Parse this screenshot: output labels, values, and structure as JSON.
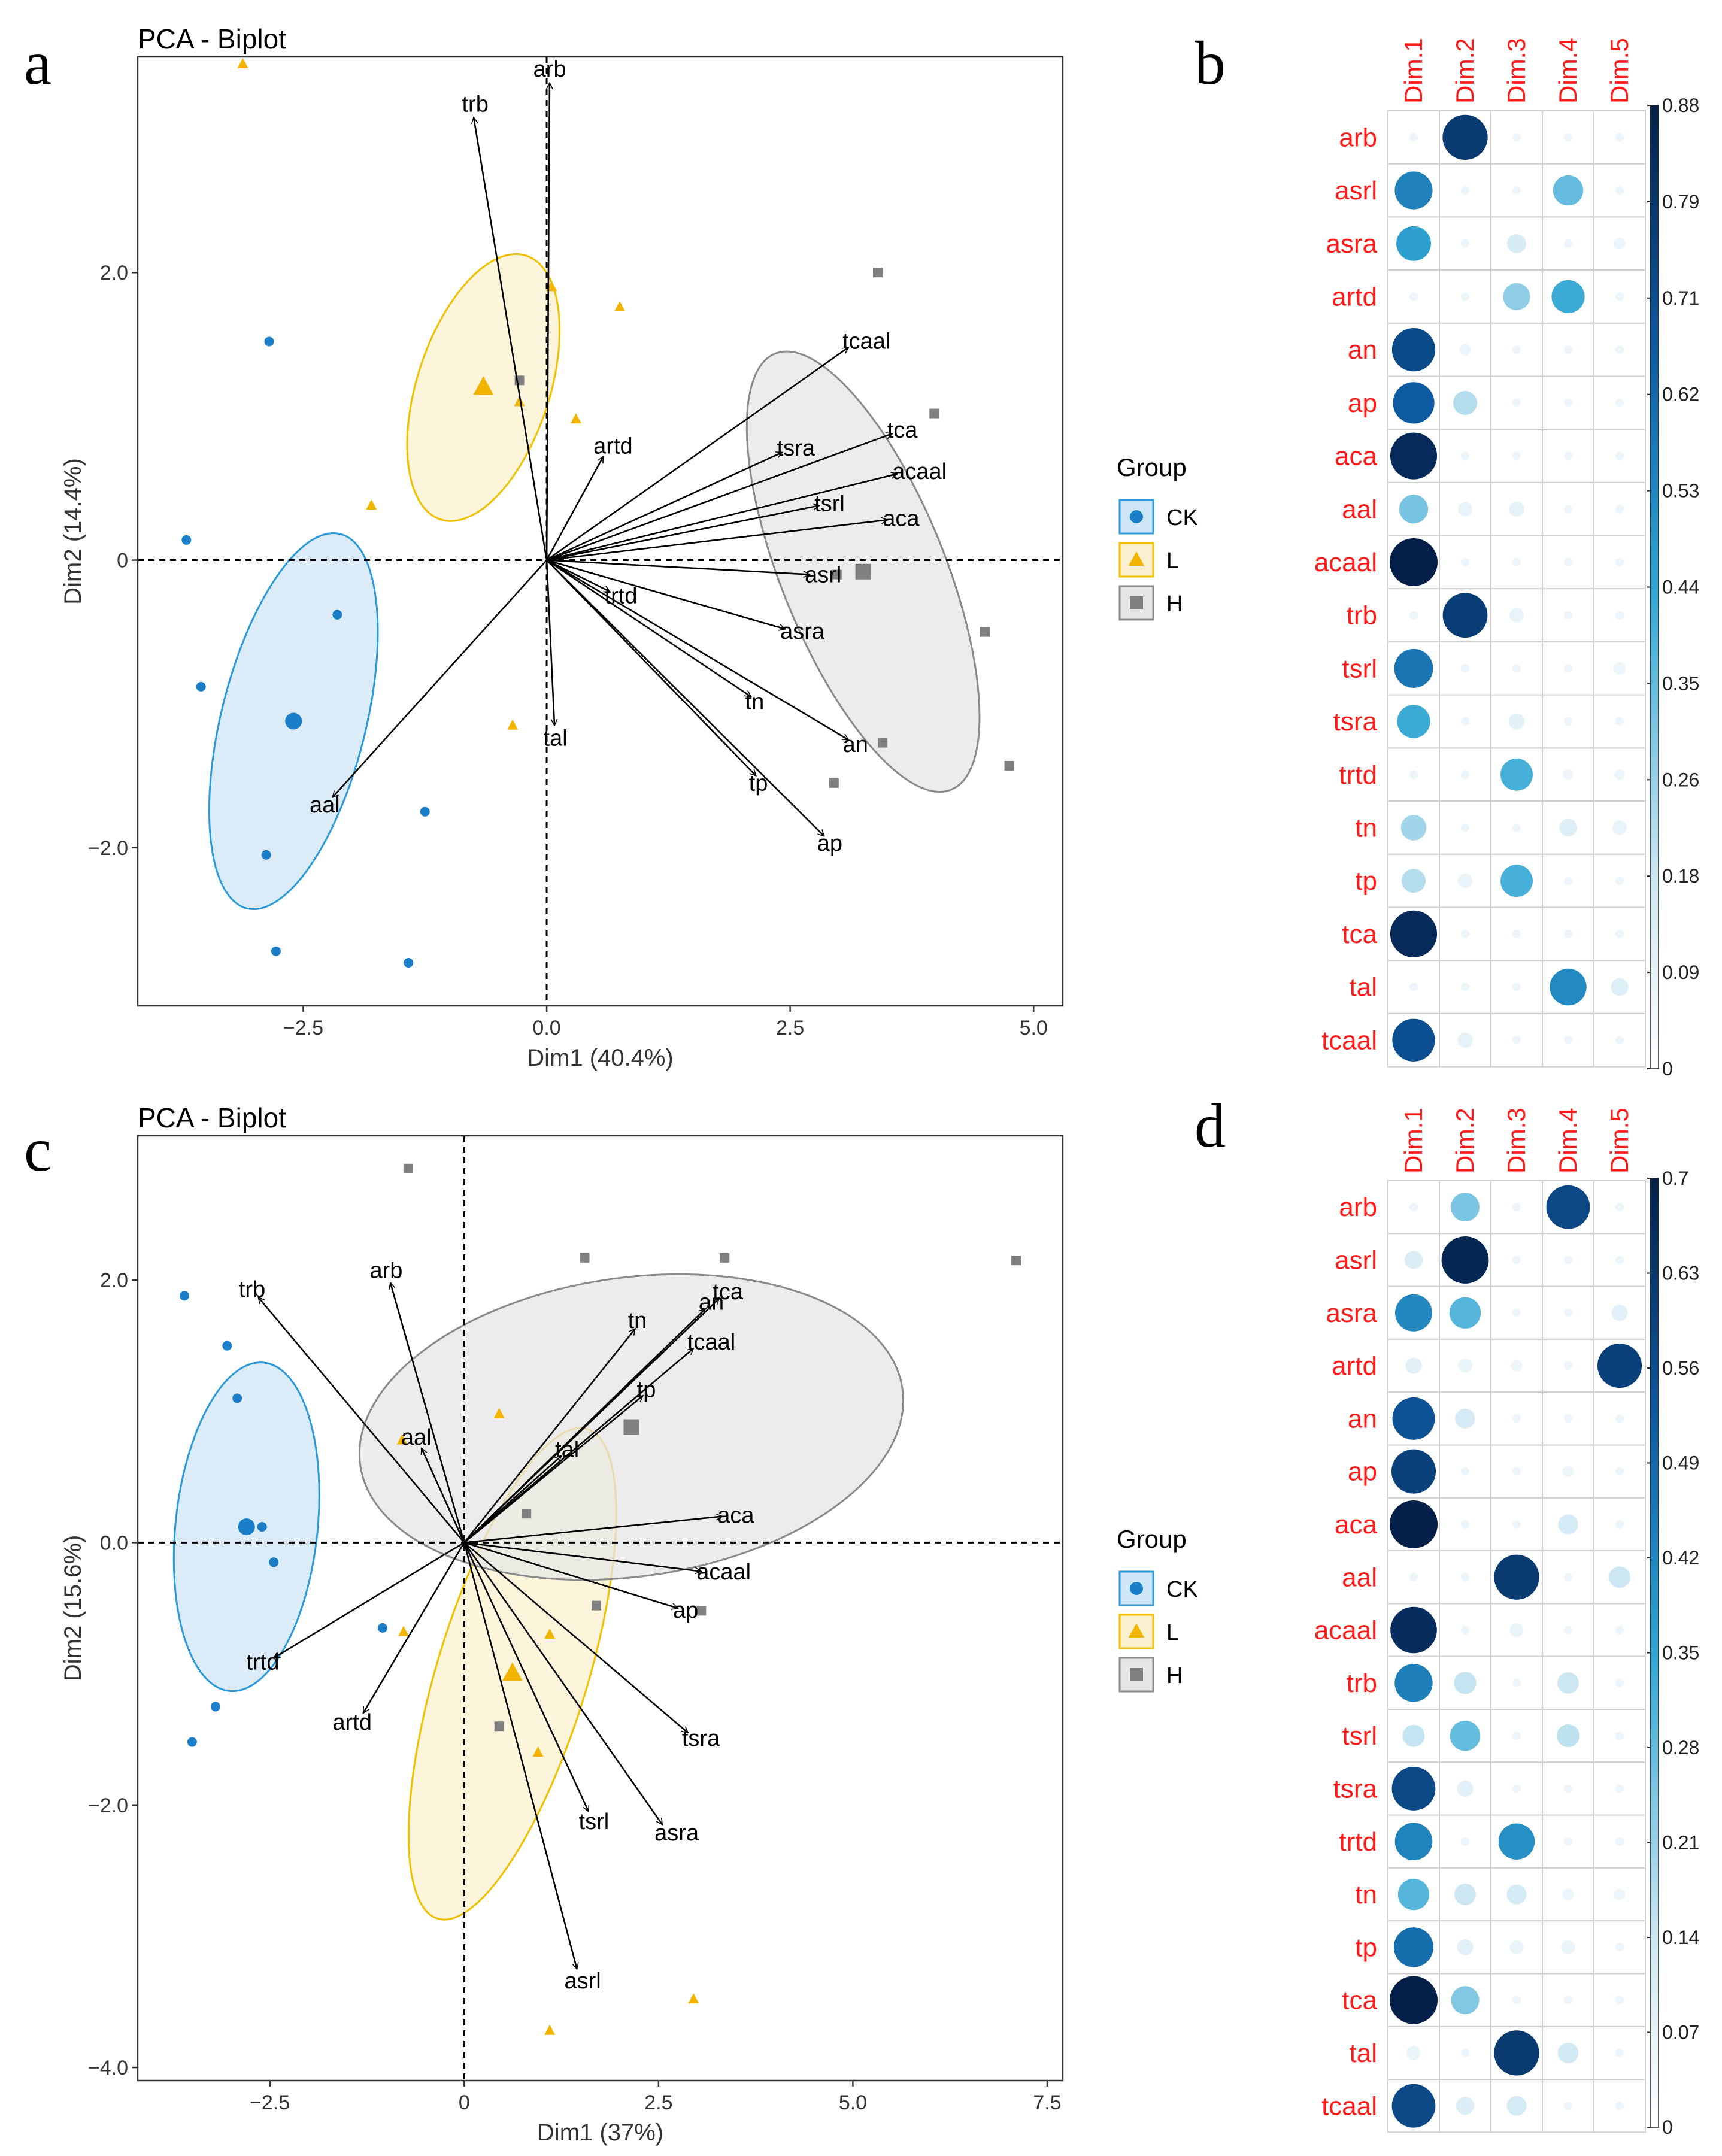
{
  "colors": {
    "CK": "#1a7fc8",
    "L": "#f3b400",
    "H": "#808080",
    "CK_fill": "#cfe6f6",
    "L_fill": "#fbf1d0",
    "H_fill": "#e6e6e6",
    "CK_line": "#2c9ad8",
    "L_line": "#f0c000",
    "H_line": "#8a8a8a"
  },
  "legend": {
    "title": "Group",
    "groups": [
      "CK",
      "L",
      "H"
    ]
  },
  "chart_data": [
    {
      "panel": "a",
      "type": "scatter",
      "title": "PCA - Biplot",
      "xlabel": "Dim1 (40.4%)",
      "ylabel": "Dim2 (14.4%)",
      "xlim": [
        -4.2,
        5.3
      ],
      "ylim": [
        -3.1,
        3.5
      ],
      "xticks": [
        -2.5,
        0.0,
        2.5,
        5.0
      ],
      "xtick_labels": [
        "−2.5",
        "0.0",
        "2.5",
        "5.0"
      ],
      "yticks": [
        -2.0,
        0,
        2.0
      ],
      "ytick_labels": [
        "−2.0",
        "0",
        "2.0"
      ],
      "points": {
        "CK": [
          [
            -3.7,
            0.14
          ],
          [
            -2.85,
            1.52
          ],
          [
            -3.55,
            -0.88
          ],
          [
            -2.15,
            -0.38
          ],
          [
            -2.88,
            -2.05
          ],
          [
            -1.25,
            -1.75
          ],
          [
            -2.78,
            -2.72
          ],
          [
            -1.42,
            -2.8
          ]
        ],
        "L": [
          [
            -3.12,
            3.45
          ],
          [
            0.05,
            1.9
          ],
          [
            0.75,
            1.76
          ],
          [
            -0.28,
            1.1
          ],
          [
            0.3,
            0.98
          ],
          [
            -1.8,
            0.38
          ],
          [
            -0.35,
            -1.15
          ]
        ],
        "H": [
          [
            3.4,
            2.0
          ],
          [
            3.98,
            1.02
          ],
          [
            2.98,
            -0.1
          ],
          [
            4.5,
            -0.5
          ],
          [
            3.45,
            -1.27
          ],
          [
            2.95,
            -1.55
          ],
          [
            4.75,
            -1.43
          ],
          [
            -0.28,
            1.25
          ]
        ]
      },
      "centroids": {
        "CK": [
          -2.6,
          -1.12
        ],
        "L": [
          -0.65,
          1.2
        ],
        "H": [
          3.25,
          -0.08
        ]
      },
      "ellipses": {
        "CK": {
          "cx": -2.6,
          "cy": -1.12,
          "rx": 1.6,
          "ry": 0.6,
          "angle": 76
        },
        "L": {
          "cx": -0.65,
          "cy": 1.2,
          "rx": 1.15,
          "ry": 0.55,
          "angle": 72
        },
        "H": {
          "cx": 3.25,
          "cy": -0.08,
          "rx": 1.95,
          "ry": 0.68,
          "angle": 112
        }
      },
      "arrows": [
        {
          "label": "arb",
          "x": 0.03,
          "y": 3.32
        },
        {
          "label": "trb",
          "x": -0.75,
          "y": 3.08
        },
        {
          "label": "artd",
          "x": 0.58,
          "y": 0.72
        },
        {
          "label": "tcaal",
          "x": 3.1,
          "y": 1.48
        },
        {
          "label": "tca",
          "x": 3.55,
          "y": 0.88
        },
        {
          "label": "tsra",
          "x": 2.42,
          "y": 0.75
        },
        {
          "label": "acaal",
          "x": 3.6,
          "y": 0.6
        },
        {
          "label": "tsrl",
          "x": 2.8,
          "y": 0.38
        },
        {
          "label": "aca",
          "x": 3.5,
          "y": 0.28
        },
        {
          "label": "asrl",
          "x": 2.7,
          "y": -0.1
        },
        {
          "label": "asra",
          "x": 2.45,
          "y": -0.48
        },
        {
          "label": "trtd",
          "x": 0.65,
          "y": -0.22
        },
        {
          "label": "tn",
          "x": 2.1,
          "y": -0.95
        },
        {
          "label": "tal",
          "x": 0.08,
          "y": -1.15
        },
        {
          "label": "aal",
          "x": -2.2,
          "y": -1.65
        },
        {
          "label": "tp",
          "x": 2.15,
          "y": -1.5
        },
        {
          "label": "an",
          "x": 3.1,
          "y": -1.25
        },
        {
          "label": "ap",
          "x": 2.85,
          "y": -1.92
        }
      ]
    },
    {
      "panel": "b",
      "type": "heatmap",
      "columns": [
        "Dim.1",
        "Dim.2",
        "Dim.3",
        "Dim.4",
        "Dim.5"
      ],
      "rows": [
        "arb",
        "asrl",
        "asra",
        "artd",
        "an",
        "ap",
        "aca",
        "aal",
        "acaal",
        "trb",
        "tsrl",
        "tsra",
        "trtd",
        "tn",
        "tp",
        "tca",
        "tal",
        "tcaal"
      ],
      "max": 0.88,
      "colorbar_ticks": [
        "0.88",
        "0.79",
        "0.71",
        "0.62",
        "0.53",
        "0.44",
        "0.35",
        "0.26",
        "0.18",
        "0.09",
        "0"
      ],
      "values": [
        [
          0.0,
          0.78,
          0.01,
          0.01,
          0.01
        ],
        [
          0.55,
          0.0,
          0.0,
          0.35,
          0.0
        ],
        [
          0.46,
          0.0,
          0.14,
          0.01,
          0.05
        ],
        [
          0.0,
          0.0,
          0.28,
          0.42,
          0.0
        ],
        [
          0.72,
          0.05,
          0.0,
          0.01,
          0.0
        ],
        [
          0.66,
          0.22,
          0.0,
          0.0,
          0.0
        ],
        [
          0.84,
          0.0,
          0.0,
          0.01,
          0.0
        ],
        [
          0.32,
          0.08,
          0.09,
          0.0,
          0.0
        ],
        [
          0.88,
          0.0,
          0.0,
          0.0,
          0.0
        ],
        [
          0.0,
          0.77,
          0.08,
          0.0,
          0.0
        ],
        [
          0.58,
          0.01,
          0.0,
          0.0,
          0.06
        ],
        [
          0.42,
          0.01,
          0.1,
          0.01,
          0.02
        ],
        [
          0.0,
          0.0,
          0.4,
          0.04,
          0.04
        ],
        [
          0.25,
          0.02,
          0.0,
          0.12,
          0.08
        ],
        [
          0.22,
          0.08,
          0.4,
          0.0,
          0.0
        ],
        [
          0.84,
          0.02,
          0.0,
          0.02,
          0.0
        ],
        [
          0.0,
          0.02,
          0.02,
          0.52,
          0.12
        ],
        [
          0.7,
          0.09,
          0.0,
          0.0,
          0.02
        ]
      ]
    },
    {
      "panel": "c",
      "type": "scatter",
      "title": "PCA - Biplot",
      "xlabel": "Dim1 (37%)",
      "ylabel": "Dim2 (15.6%)",
      "xlim": [
        -4.2,
        7.7
      ],
      "ylim": [
        -4.1,
        3.1
      ],
      "xticks": [
        -2.5,
        0.0,
        2.5,
        5.0,
        7.5
      ],
      "xtick_labels": [
        "−2.5",
        "0",
        "2.5",
        "5.0",
        "7.5"
      ],
      "yticks": [
        -4.0,
        -2.0,
        0.0,
        2.0
      ],
      "ytick_labels": [
        "−4.0",
        "−2.0",
        "0.0",
        "2.0"
      ],
      "points": {
        "CK": [
          [
            -3.6,
            1.88
          ],
          [
            -3.05,
            1.5
          ],
          [
            -2.92,
            1.1
          ],
          [
            -2.6,
            0.12
          ],
          [
            -2.45,
            -0.15
          ],
          [
            -1.05,
            -0.65
          ],
          [
            -3.2,
            -1.25
          ],
          [
            -3.5,
            -1.52
          ]
        ],
        "L": [
          [
            0.45,
            0.98
          ],
          [
            -0.8,
            0.78
          ],
          [
            -0.78,
            -0.68
          ],
          [
            1.1,
            -0.7
          ],
          [
            0.95,
            -1.6
          ],
          [
            2.95,
            -3.48
          ],
          [
            1.1,
            -3.72
          ]
        ],
        "H": [
          [
            -0.72,
            2.85
          ],
          [
            1.55,
            2.17
          ],
          [
            3.35,
            2.17
          ],
          [
            7.1,
            2.15
          ],
          [
            0.8,
            0.22
          ],
          [
            1.7,
            -0.48
          ],
          [
            3.05,
            -0.52
          ],
          [
            0.45,
            -1.4
          ]
        ]
      },
      "centroids": {
        "CK": [
          -2.8,
          0.12
        ],
        "L": [
          0.62,
          -1.0
        ],
        "H": [
          2.15,
          0.88
        ]
      },
      "ellipses": {
        "CK": {
          "cx": -2.8,
          "cy": 0.12,
          "rx": 1.58,
          "ry": 0.68,
          "angle": 84
        },
        "L": {
          "cx": 0.62,
          "cy": -1.0,
          "rx": 2.45,
          "ry": 0.72,
          "angle": 73
        },
        "H": {
          "cx": 2.15,
          "cy": 0.88,
          "rx": 2.62,
          "ry": 1.43,
          "angle": 8
        }
      },
      "arrows": [
        {
          "label": "arb",
          "x": -0.95,
          "y": 1.98
        },
        {
          "label": "trb",
          "x": -2.65,
          "y": 1.87
        },
        {
          "label": "aal",
          "x": -0.55,
          "y": 0.72
        },
        {
          "label": "trtd",
          "x": -2.45,
          "y": -0.88
        },
        {
          "label": "artd",
          "x": -1.3,
          "y": -1.3
        },
        {
          "label": "tn",
          "x": 2.2,
          "y": 1.63
        },
        {
          "label": "an",
          "x": 3.1,
          "y": 1.78
        },
        {
          "label": "tca",
          "x": 3.28,
          "y": 1.86
        },
        {
          "label": "tcaal",
          "x": 2.95,
          "y": 1.48
        },
        {
          "label": "tp",
          "x": 2.3,
          "y": 1.12
        },
        {
          "label": "tal",
          "x": 1.25,
          "y": 0.66
        },
        {
          "label": "aca",
          "x": 3.32,
          "y": 0.2
        },
        {
          "label": "acaal",
          "x": 3.05,
          "y": -0.22
        },
        {
          "label": "ap",
          "x": 2.75,
          "y": -0.5
        },
        {
          "label": "tsra",
          "x": 2.88,
          "y": -1.45
        },
        {
          "label": "asra",
          "x": 2.55,
          "y": -2.15
        },
        {
          "label": "tsrl",
          "x": 1.6,
          "y": -2.05
        },
        {
          "label": "asrl",
          "x": 1.45,
          "y": -3.25
        }
      ]
    },
    {
      "panel": "d",
      "type": "heatmap",
      "columns": [
        "Dim.1",
        "Dim.2",
        "Dim.3",
        "Dim.4",
        "Dim.5"
      ],
      "rows": [
        "arb",
        "asrl",
        "asra",
        "artd",
        "an",
        "ap",
        "aca",
        "aal",
        "acaal",
        "trb",
        "tsrl",
        "tsra",
        "trtd",
        "tn",
        "tp",
        "tca",
        "tal",
        "tcaal"
      ],
      "max": 0.7,
      "colorbar_ticks": [
        "0.7",
        "0.63",
        "0.56",
        "0.49",
        "0.42",
        "0.35",
        "0.28",
        "0.21",
        "0.14",
        "0.07",
        "0"
      ],
      "values": [
        [
          0.02,
          0.25,
          0.02,
          0.58,
          0.0
        ],
        [
          0.1,
          0.68,
          0.01,
          0.02,
          0.02
        ],
        [
          0.42,
          0.3,
          0.0,
          0.0,
          0.08
        ],
        [
          0.08,
          0.06,
          0.04,
          0.02,
          0.6
        ],
        [
          0.55,
          0.12,
          0.0,
          0.01,
          0.0
        ],
        [
          0.6,
          0.0,
          0.02,
          0.04,
          0.01
        ],
        [
          0.7,
          0.0,
          0.0,
          0.12,
          0.0
        ],
        [
          0.0,
          0.01,
          0.62,
          0.01,
          0.14
        ],
        [
          0.66,
          0.0,
          0.06,
          0.01,
          0.01
        ],
        [
          0.44,
          0.15,
          0.0,
          0.14,
          0.0
        ],
        [
          0.15,
          0.28,
          0.0,
          0.16,
          0.0
        ],
        [
          0.58,
          0.08,
          0.0,
          0.0,
          0.02
        ],
        [
          0.43,
          0.01,
          0.4,
          0.01,
          0.02
        ],
        [
          0.3,
          0.14,
          0.12,
          0.04,
          0.04
        ],
        [
          0.48,
          0.08,
          0.06,
          0.06,
          0.02
        ],
        [
          0.7,
          0.24,
          0.0,
          0.01,
          0.0
        ],
        [
          0.06,
          0.0,
          0.62,
          0.13,
          0.0
        ],
        [
          0.58,
          0.1,
          0.12,
          0.0,
          0.02
        ]
      ]
    }
  ]
}
